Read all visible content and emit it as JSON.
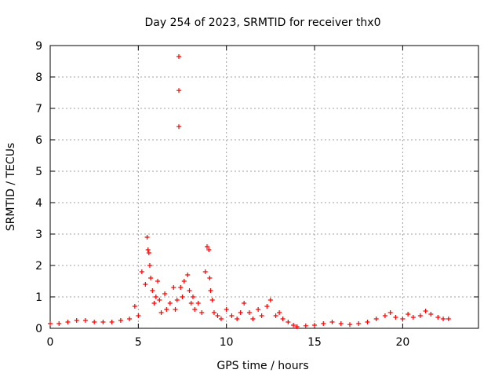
{
  "chart_data": {
    "type": "scatter",
    "title": "Day 254 of 2023, SRMTID for receiver thx0",
    "xlabel": "GPS time / hours",
    "ylabel": "SRMTID / TECUs",
    "xlim": [
      0,
      24.3
    ],
    "ylim": [
      0,
      9
    ],
    "xticks": [
      0,
      5,
      10,
      15,
      20
    ],
    "yticks": [
      0,
      1,
      2,
      3,
      4,
      5,
      6,
      7,
      8,
      9
    ],
    "grid": true,
    "marker": "+",
    "series": [
      {
        "name": "SRMTID",
        "color": "#ff0000",
        "x": [
          0,
          0.5,
          1,
          1.5,
          2,
          2.5,
          3,
          3.5,
          4,
          4.5,
          4.8,
          5,
          5.2,
          5.4,
          5.5,
          5.55,
          5.6,
          5.65,
          5.7,
          5.8,
          5.9,
          6,
          6.1,
          6.2,
          6.3,
          6.5,
          6.6,
          6.8,
          7,
          7.1,
          7.2,
          7.3,
          7.3,
          7.3,
          7.4,
          7.5,
          7.6,
          7.8,
          7.9,
          8,
          8.1,
          8.2,
          8.4,
          8.6,
          8.8,
          8.9,
          9,
          9.05,
          9.1,
          9.2,
          9.3,
          9.5,
          9.7,
          10,
          10.3,
          10.6,
          10.8,
          11,
          11.3,
          11.5,
          11.8,
          12,
          12.3,
          12.5,
          12.8,
          13,
          13.2,
          13.5,
          13.8,
          14,
          14.5,
          15,
          15.5,
          16,
          16.5,
          17,
          17.5,
          18,
          18.5,
          19,
          19.3,
          19.6,
          20,
          20.3,
          20.6,
          21,
          21.3,
          21.6,
          22,
          22.3,
          22.6
        ],
        "y": [
          0.15,
          0.15,
          0.2,
          0.25,
          0.25,
          0.2,
          0.2,
          0.2,
          0.25,
          0.3,
          0.7,
          0.4,
          1.8,
          1.4,
          2.9,
          2.5,
          2.4,
          2.0,
          1.6,
          1.2,
          0.8,
          1.0,
          1.5,
          0.9,
          0.5,
          1.1,
          0.6,
          0.8,
          1.3,
          0.6,
          0.9,
          8.65,
          7.57,
          6.42,
          1.3,
          1.0,
          1.5,
          1.7,
          1.2,
          0.8,
          1.0,
          0.6,
          0.8,
          0.5,
          1.8,
          2.6,
          2.5,
          1.6,
          1.2,
          0.9,
          0.5,
          0.4,
          0.3,
          0.6,
          0.4,
          0.3,
          0.5,
          0.8,
          0.5,
          0.3,
          0.6,
          0.4,
          0.7,
          0.9,
          0.4,
          0.5,
          0.3,
          0.2,
          0.1,
          0.05,
          0.08,
          0.1,
          0.15,
          0.2,
          0.15,
          0.12,
          0.15,
          0.2,
          0.3,
          0.4,
          0.5,
          0.35,
          0.3,
          0.45,
          0.35,
          0.4,
          0.55,
          0.45,
          0.35,
          0.3,
          0.3
        ]
      }
    ]
  }
}
